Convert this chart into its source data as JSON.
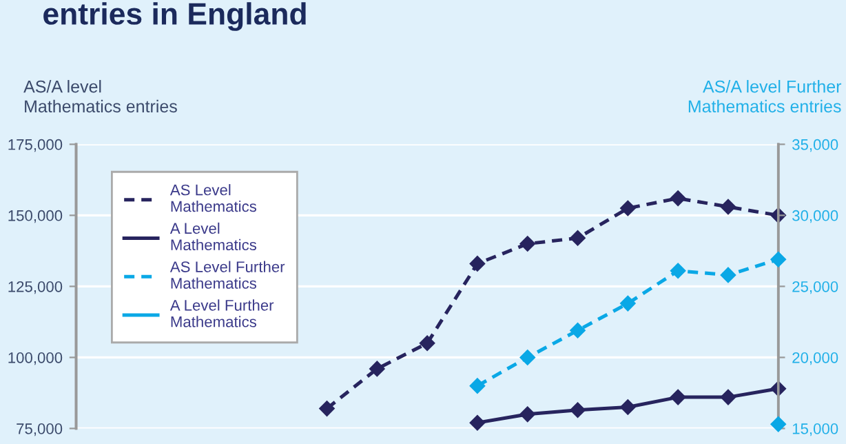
{
  "chart_data": {
    "type": "line",
    "title": "entries in England",
    "ylabel": "AS/A level\nMathematics entries",
    "y2label": "AS/A level Further\nMathematics entries",
    "categories": [
      null,
      null,
      null,
      null,
      null,
      null,
      null,
      null,
      null,
      null,
      null,
      null,
      null,
      null,
      null
    ],
    "series": [
      {
        "name": "AS Level\nMathematics",
        "color": "#27245e",
        "line_style": "dashed",
        "values": [
          null,
          null,
          null,
          null,
          null,
          82000,
          96000,
          105000,
          133000,
          140000,
          142000,
          152500,
          156000,
          153000,
          150000
        ]
      },
      {
        "name": "A Level\nMathematics",
        "color": "#27245e",
        "line_style": "solid",
        "values": [
          null,
          null,
          null,
          null,
          null,
          null,
          null,
          null,
          77000,
          80000,
          81500,
          82500,
          86000,
          86000,
          89000
        ]
      },
      {
        "name": "AS Level Further\nMathematics",
        "color": "#0aa8e6",
        "line_style": "dashed",
        "axis": "y2",
        "values": [
          null,
          null,
          null,
          null,
          null,
          null,
          null,
          null,
          18000,
          20000,
          21900,
          23800,
          26100,
          25800,
          26900
        ]
      },
      {
        "name": "A Level Further\nMathematics",
        "color": "#0aa8e6",
        "line_style": "solid",
        "axis": "y2",
        "values": [
          null,
          null,
          null,
          null,
          null,
          null,
          null,
          null,
          null,
          null,
          null,
          null,
          null,
          null,
          15300
        ]
      }
    ],
    "ylim": [
      75000,
      175000
    ],
    "yticks": [
      {
        "value": 75000,
        "label": "75,000"
      },
      {
        "value": 100000,
        "label": "100,000"
      },
      {
        "value": 125000,
        "label": "125,000"
      },
      {
        "value": 150000,
        "label": "150,000"
      },
      {
        "value": 175000,
        "label": "175,000"
      }
    ],
    "y2lim": [
      15000,
      35000
    ],
    "y2ticks": [
      {
        "value": 15000,
        "label": "15,000"
      },
      {
        "value": 20000,
        "label": "20,000"
      },
      {
        "value": 25000,
        "label": "25,000"
      },
      {
        "value": 30000,
        "label": "30,000"
      },
      {
        "value": 35000,
        "label": "35,000"
      }
    ],
    "marker": "diamond",
    "grid": "y",
    "legend": "top left"
  }
}
